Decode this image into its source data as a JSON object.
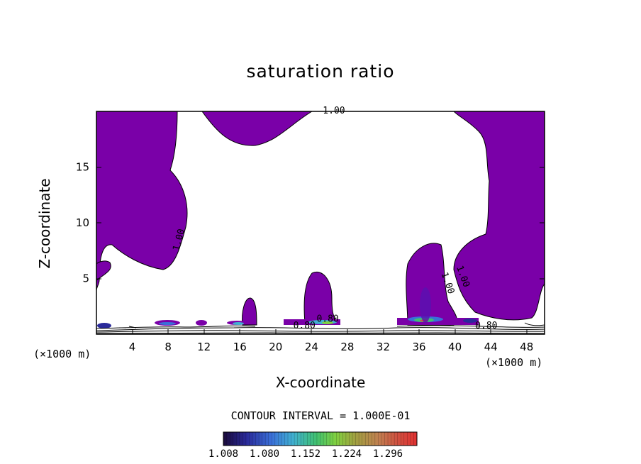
{
  "chart_data": {
    "type": "contour",
    "title": "saturation ratio",
    "xlabel": "X-coordinate",
    "ylabel": "Z-coordinate",
    "x_unit_label": "(×1000 m)",
    "xlim": [
      0,
      50
    ],
    "ylim": [
      0,
      20
    ],
    "x_ticks": [
      4,
      8,
      12,
      16,
      20,
      24,
      28,
      32,
      36,
      40,
      44,
      48
    ],
    "y_ticks": [
      5,
      10,
      15
    ],
    "contour_interval": "CONTOUR INTERVAL = 1.000E-01",
    "contour_labels": [
      {
        "text": "1.00",
        "x": 26.5,
        "z": 19.8
      },
      {
        "text": "1.00",
        "x": 9.5,
        "z": 8.4
      },
      {
        "text": "1.00",
        "x": 38.9,
        "z": 4.5
      },
      {
        "text": "1.00",
        "x": 40.6,
        "z": 5.1
      },
      {
        "text": "0.80",
        "x": 23.2,
        "z": 0.5
      },
      {
        "text": "0.80",
        "x": 43.5,
        "z": 0.5
      },
      {
        "text": "0.80",
        "x": 25.8,
        "z": 1.1
      }
    ],
    "colorbar": {
      "ticks": [
        "1.008",
        "1.080",
        "1.152",
        "1.224",
        "1.296"
      ],
      "colors": [
        "#1a0a3a",
        "#2a2a9a",
        "#3a70d8",
        "#40b0d0",
        "#40c070",
        "#80d040",
        "#a0a040",
        "#c08050",
        "#d05040",
        "#e03030"
      ]
    },
    "fill_color": "#7a00a8"
  }
}
